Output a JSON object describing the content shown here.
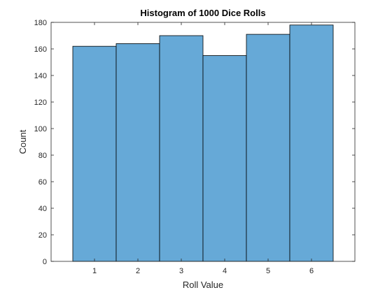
{
  "chart_data": {
    "type": "bar",
    "title": "Histogram of 1000 Dice Rolls",
    "xlabel": "Roll Value",
    "ylabel": "Count",
    "categories": [
      "1",
      "2",
      "3",
      "4",
      "5",
      "6"
    ],
    "values": [
      162,
      164,
      170,
      155,
      171,
      178
    ],
    "bin_edges": [
      0.5,
      1.5,
      2.5,
      3.5,
      4.5,
      5.5,
      6.5
    ],
    "xlim": [
      0.0,
      7.0
    ],
    "ylim": [
      0,
      180
    ],
    "yticks": [
      "0",
      "20",
      "40",
      "60",
      "80",
      "100",
      "120",
      "140",
      "160",
      "180"
    ],
    "xticks": [
      "1",
      "2",
      "3",
      "4",
      "5",
      "6"
    ],
    "grid": false,
    "colors": {
      "bar_fill": "#66a9d7",
      "bar_edge": "#000000",
      "axis": "#262626"
    }
  }
}
